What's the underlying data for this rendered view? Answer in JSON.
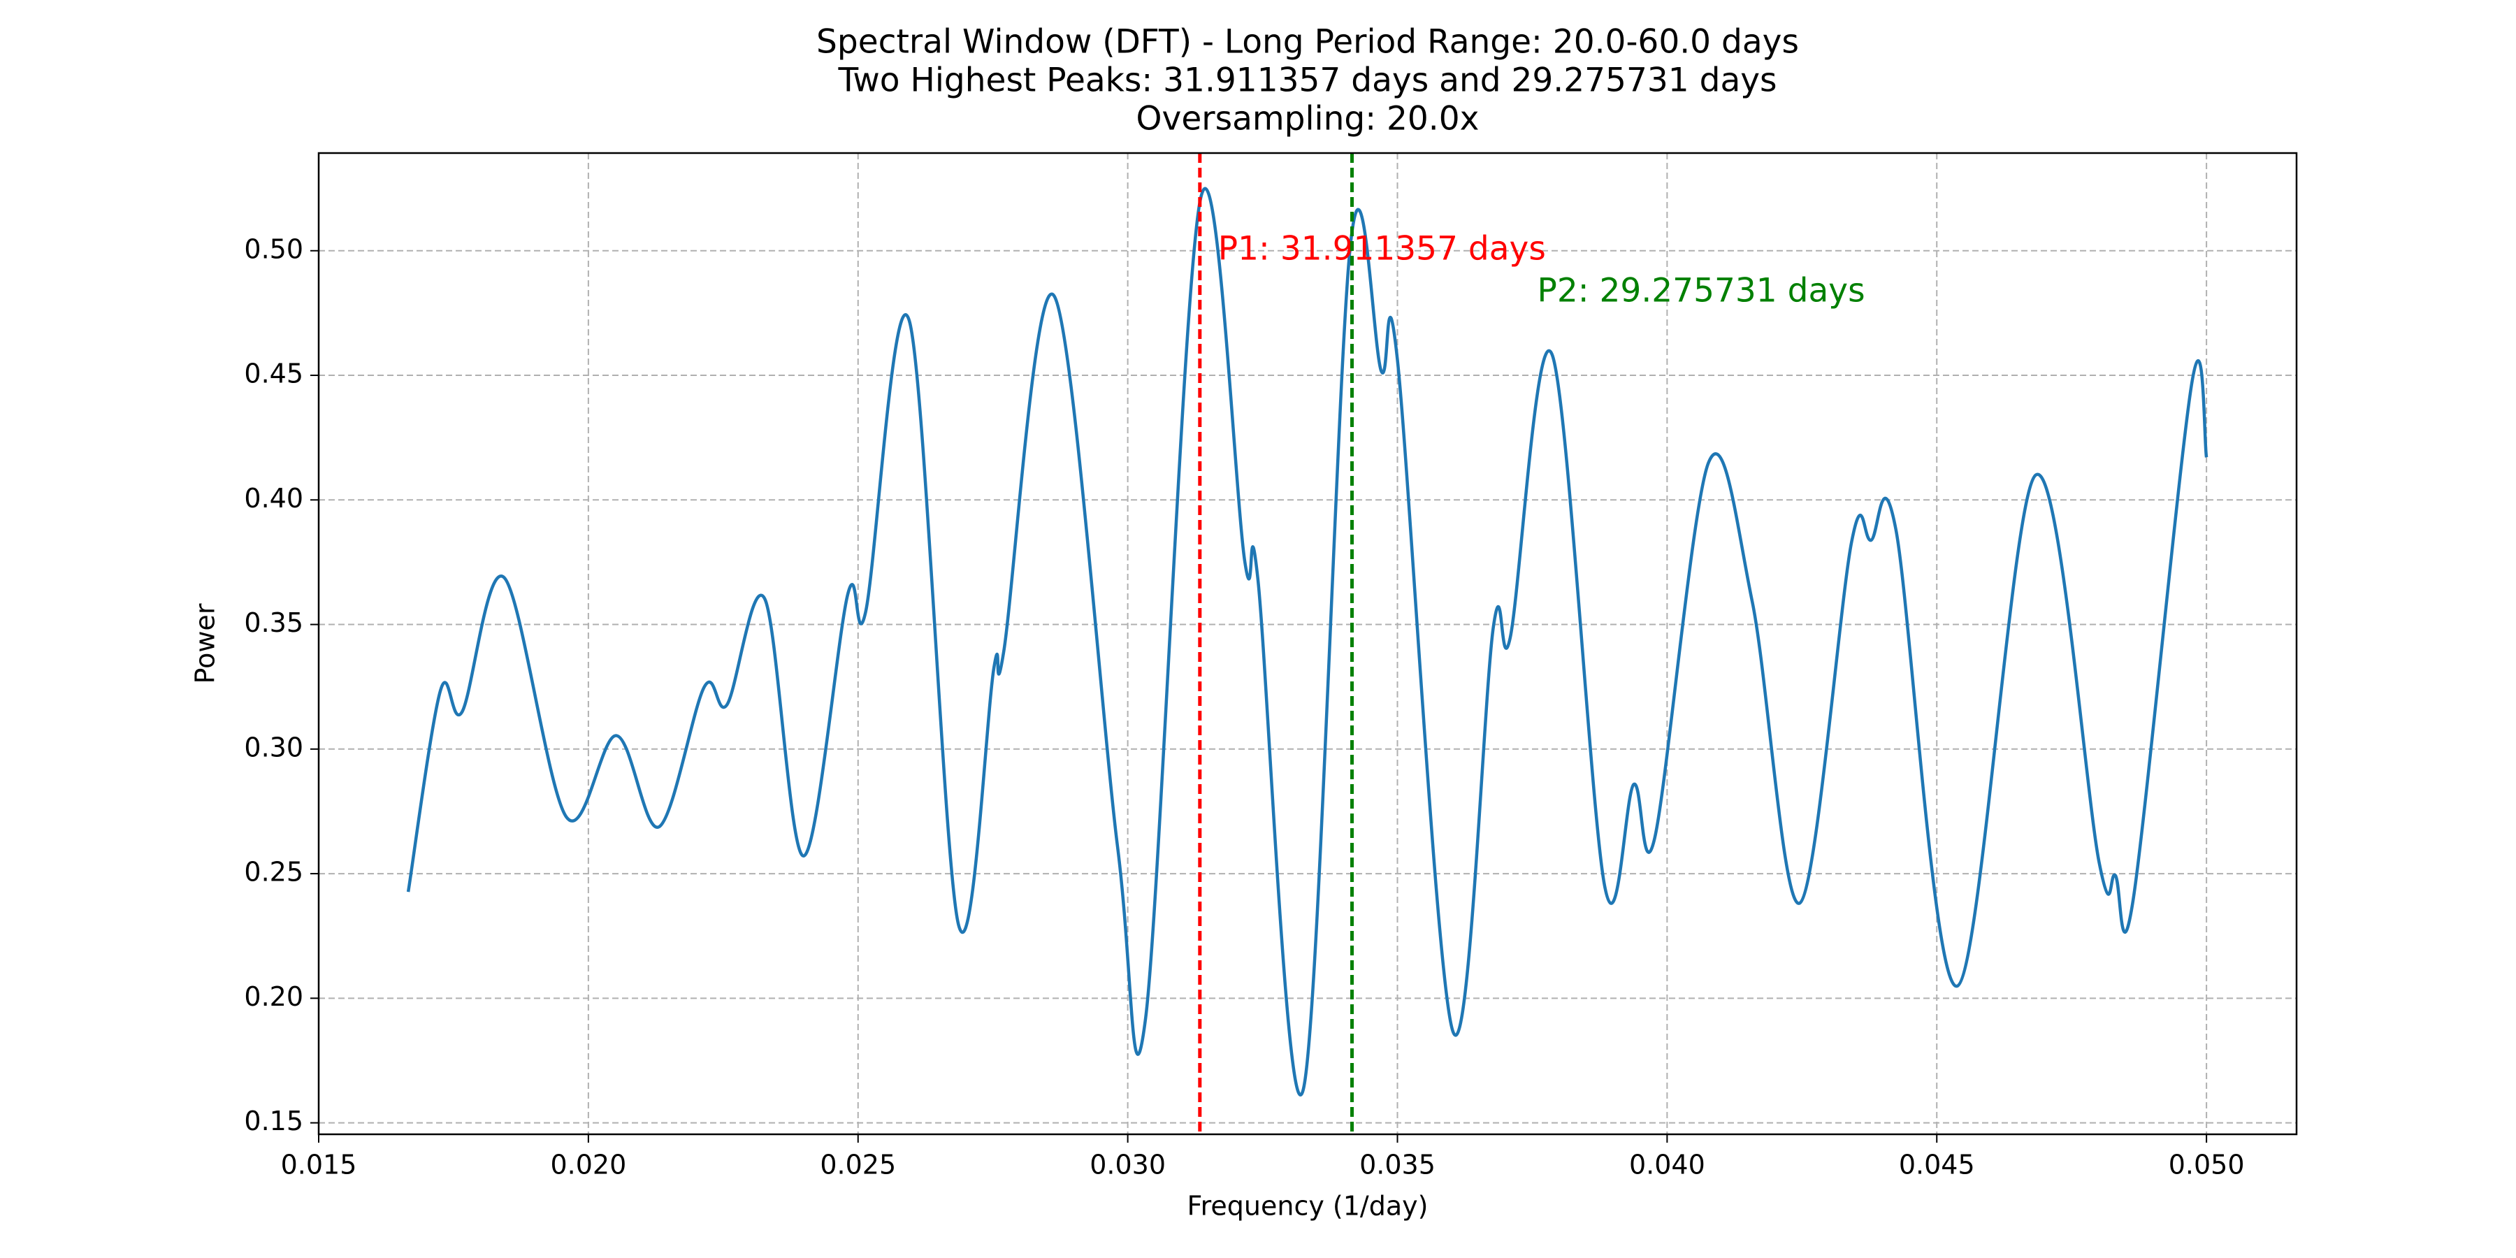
{
  "chart_data": {
    "type": "line",
    "title": [
      "Spectral Window (DFT) - Long Period Range: 20.0-60.0 days",
      "Two Highest Peaks: 31.911357 days and 29.275731 days",
      "Oversampling: 20.0x"
    ],
    "x_label": "Frequency (1/day)",
    "y_label": "Power",
    "x": [
      0.01666,
      0.01726,
      0.01766,
      0.01844,
      0.01959,
      0.02052,
      0.02131,
      0.02215,
      0.02257,
      0.02327,
      0.02399,
      0.02481,
      0.02514,
      0.02595,
      0.02686,
      0.02752,
      0.0277,
      0.02864,
      0.02981,
      0.03033,
      0.03135,
      0.03217,
      0.03241,
      0.03325,
      0.03413,
      0.0347,
      0.035,
      0.03603,
      0.03678,
      0.03709,
      0.03787,
      0.03884,
      0.03938,
      0.03977,
      0.04077,
      0.04158,
      0.04246,
      0.04342,
      0.04378,
      0.04424,
      0.04538,
      0.04683,
      0.04801,
      0.04831,
      0.04864,
      0.04973,
      0.05
    ],
    "series": [
      {
        "color": "#1f77b4",
        "values": [
          0.2427,
          0.3237,
          0.315,
          0.3688,
          0.2728,
          0.3054,
          0.2688,
          0.325,
          0.3178,
          0.3603,
          0.2571,
          0.3622,
          0.355,
          0.4719,
          0.2297,
          0.3328,
          0.339,
          0.4817,
          0.261,
          0.1918,
          0.5209,
          0.3753,
          0.3688,
          0.163,
          0.5026,
          0.4517,
          0.4562,
          0.1866,
          0.3492,
          0.3446,
          0.4582,
          0.2453,
          0.2858,
          0.2643,
          0.4151,
          0.359,
          0.2382,
          0.3831,
          0.3838,
          0.3883,
          0.2049,
          0.4099,
          0.2545,
          0.2493,
          0.2394,
          0.4471,
          0.4171
        ]
      }
    ],
    "vlines": [
      {
        "x": 0.031337,
        "color": "red",
        "label": "P1: 31.911357 days"
      },
      {
        "x": 0.034158,
        "color": "green",
        "label": "P2: 29.275731 days"
      }
    ],
    "xlim": [
      0.015,
      0.05167
    ],
    "ylim": [
      0.1454,
      0.5392
    ],
    "xticks": [
      0.015,
      {
        "value": 0.02,
        "label": "0.020"
      },
      0.025,
      {
        "value": 0.03,
        "label": "0.030"
      },
      0.035,
      {
        "value": 0.04,
        "label": "0.040"
      },
      0.045,
      {
        "value": 0.05,
        "label": "0.050"
      }
    ],
    "yticks": [
      0.15,
      {
        "value": 0.2,
        "label": "0.20"
      },
      0.25,
      {
        "value": 0.3,
        "label": "0.30"
      },
      0.35,
      {
        "value": 0.4,
        "label": "0.40"
      },
      0.45,
      {
        "value": 0.5,
        "label": "0.50"
      }
    ],
    "grid": true
  }
}
